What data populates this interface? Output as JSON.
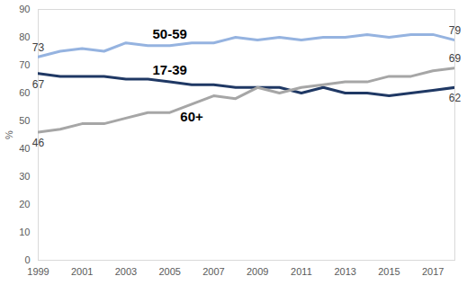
{
  "chart_data": {
    "type": "line",
    "y_label": "%",
    "x": [
      1999,
      2000,
      2001,
      2002,
      2003,
      2004,
      2005,
      2006,
      2007,
      2008,
      2009,
      2010,
      2011,
      2012,
      2013,
      2014,
      2015,
      2016,
      2017,
      2018
    ],
    "series": [
      {
        "name": "50-59",
        "color": "#95b3e0",
        "values": [
          73,
          75,
          76,
          75,
          78,
          77,
          77,
          78,
          78,
          80,
          79,
          80,
          79,
          80,
          80,
          81,
          80,
          81,
          81,
          79
        ]
      },
      {
        "name": "17-39",
        "color": "#1f3864",
        "values": [
          67,
          66,
          66,
          66,
          65,
          65,
          64,
          63,
          63,
          62,
          62,
          62,
          60,
          62,
          60,
          60,
          59,
          60,
          61,
          62
        ]
      },
      {
        "name": "60+",
        "color": "#a6a6a6",
        "values": [
          46,
          47,
          49,
          49,
          51,
          53,
          53,
          56,
          59,
          58,
          62,
          60,
          62,
          63,
          64,
          64,
          66,
          66,
          68,
          69
        ]
      }
    ],
    "xlim": [
      1999,
      2018
    ],
    "xticks": [
      1999,
      2001,
      2003,
      2005,
      2007,
      2009,
      2011,
      2013,
      2015,
      2017
    ],
    "ylim": [
      0,
      90
    ],
    "yticks": [
      0,
      10,
      20,
      30,
      40,
      50,
      60,
      70,
      80,
      90
    ],
    "grid": false
  }
}
